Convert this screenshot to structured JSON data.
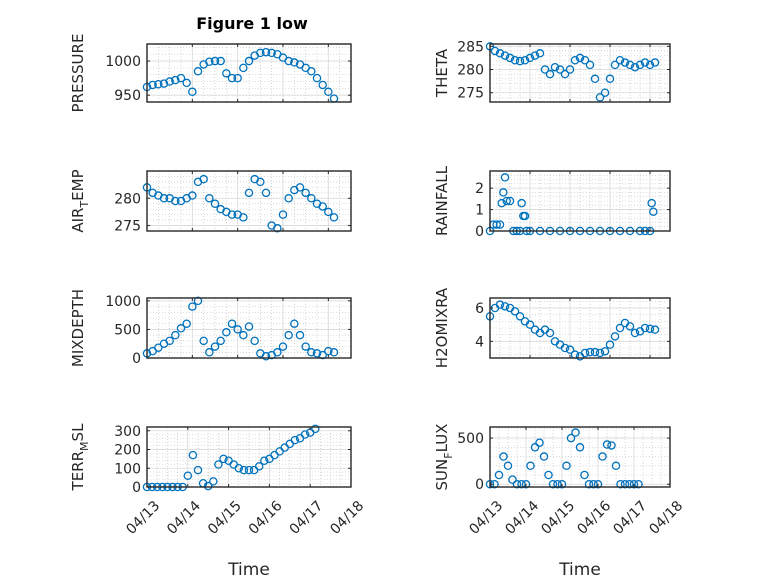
{
  "figure_title": "Figure 1 low",
  "marker_color": "#0072BD",
  "chart_data": [
    {
      "type": "scatter",
      "ylabel_main": "PRESSURE",
      "ylabel_sub": "",
      "ylabel_tail": "",
      "ylim": [
        940,
        1025
      ],
      "yticks": [
        950,
        1000
      ],
      "ytick_labels": [
        "950",
        "1000"
      ],
      "xlim": [
        "04/13",
        "04/17 12:00"
      ],
      "xticks": [],
      "xtick_labels": [],
      "xlabel": "",
      "x": [
        "04/13 00:00",
        "04/13 03:00",
        "04/13 06:00",
        "04/13 09:00",
        "04/13 12:00",
        "04/13 15:00",
        "04/13 18:00",
        "04/13 21:00",
        "04/14 00:00",
        "04/14 03:00",
        "04/14 06:00",
        "04/14 09:00",
        "04/14 12:00",
        "04/14 15:00",
        "04/14 18:00",
        "04/14 21:00",
        "04/15 00:00",
        "04/15 03:00",
        "04/15 06:00",
        "04/15 09:00",
        "04/15 12:00",
        "04/15 15:00",
        "04/15 18:00",
        "04/15 21:00",
        "04/16 00:00",
        "04/16 03:00",
        "04/16 06:00",
        "04/16 09:00",
        "04/16 12:00",
        "04/16 15:00",
        "04/16 18:00",
        "04/16 21:00",
        "04/17 00:00",
        "04/17 03:00"
      ],
      "y": [
        962,
        965,
        966,
        967,
        970,
        972,
        975,
        968,
        955,
        985,
        995,
        999,
        1000,
        1000,
        982,
        975,
        975,
        990,
        1000,
        1008,
        1012,
        1013,
        1012,
        1010,
        1005,
        1000,
        998,
        995,
        990,
        985,
        975,
        965,
        955,
        945
      ]
    },
    {
      "type": "scatter",
      "ylabel_main": "THETA",
      "ylabel_sub": "",
      "ylabel_tail": "",
      "ylim": [
        273,
        285.5
      ],
      "yticks": [
        275,
        280,
        285
      ],
      "ytick_labels": [
        "275",
        "280",
        "285"
      ],
      "xlim": [
        "04/13",
        "04/17 12:00"
      ],
      "xticks": [],
      "xtick_labels": [],
      "xlabel": "",
      "x": [
        "04/13 00:00",
        "04/13 03:00",
        "04/13 06:00",
        "04/13 09:00",
        "04/13 12:00",
        "04/13 15:00",
        "04/13 18:00",
        "04/13 21:00",
        "04/14 00:00",
        "04/14 03:00",
        "04/14 06:00",
        "04/14 09:00",
        "04/14 12:00",
        "04/14 15:00",
        "04/14 18:00",
        "04/14 21:00",
        "04/15 00:00",
        "04/15 03:00",
        "04/15 06:00",
        "04/15 09:00",
        "04/15 12:00",
        "04/15 15:00",
        "04/15 18:00",
        "04/15 21:00",
        "04/16 00:00",
        "04/16 03:00",
        "04/16 06:00",
        "04/16 09:00",
        "04/16 12:00",
        "04/16 15:00",
        "04/16 18:00",
        "04/16 21:00",
        "04/17 00:00",
        "04/17 03:00"
      ],
      "y": [
        285,
        284,
        283.5,
        283,
        282.5,
        282,
        281.8,
        282,
        282.5,
        283,
        283.5,
        280,
        279,
        280.5,
        280,
        279,
        280,
        282,
        282.5,
        282,
        281,
        278,
        274,
        275,
        278,
        281,
        282,
        281.5,
        281,
        280.5,
        281,
        281.5,
        281,
        281.5
      ]
    },
    {
      "type": "scatter",
      "ylabel_main": "AIR",
      "ylabel_sub": "T",
      "ylabel_tail": "EMP",
      "ylim": [
        274,
        285
      ],
      "yticks": [
        275,
        280
      ],
      "ytick_labels": [
        "275",
        "280"
      ],
      "xlim": [
        "04/13",
        "04/17 12:00"
      ],
      "xticks": [],
      "xtick_labels": [],
      "xlabel": "",
      "x": [
        "04/13 00:00",
        "04/13 03:00",
        "04/13 06:00",
        "04/13 09:00",
        "04/13 12:00",
        "04/13 15:00",
        "04/13 18:00",
        "04/13 21:00",
        "04/14 00:00",
        "04/14 03:00",
        "04/14 06:00",
        "04/14 09:00",
        "04/14 12:00",
        "04/14 15:00",
        "04/14 18:00",
        "04/14 21:00",
        "04/15 00:00",
        "04/15 03:00",
        "04/15 06:00",
        "04/15 09:00",
        "04/15 12:00",
        "04/15 15:00",
        "04/15 18:00",
        "04/15 21:00",
        "04/16 00:00",
        "04/16 03:00",
        "04/16 06:00",
        "04/16 09:00",
        "04/16 12:00",
        "04/16 15:00",
        "04/16 18:00",
        "04/16 21:00",
        "04/17 00:00",
        "04/17 03:00"
      ],
      "y": [
        282,
        281,
        280.5,
        280,
        280,
        279.5,
        279.5,
        280,
        280.5,
        283,
        283.5,
        280,
        279,
        278,
        277.5,
        277,
        277,
        276.5,
        281,
        283.5,
        283,
        281,
        275,
        274.5,
        277,
        280,
        281.5,
        282,
        281,
        280,
        279,
        278.5,
        277.5,
        276.5
      ]
    },
    {
      "type": "scatter",
      "ylabel_main": "RAINFALL",
      "ylabel_sub": "",
      "ylabel_tail": "",
      "ylim": [
        0,
        2.8
      ],
      "yticks": [
        0,
        1,
        2
      ],
      "ytick_labels": [
        "0",
        "1",
        "2"
      ],
      "xlim": [
        "04/13",
        "04/17 12:00"
      ],
      "xticks": [],
      "xtick_labels": [],
      "xlabel": "",
      "x": [
        "04/13 00:00",
        "04/13 02:00",
        "04/13 04:00",
        "04/13 06:00",
        "04/13 07:00",
        "04/13 08:00",
        "04/13 09:00",
        "04/13 10:00",
        "04/13 12:00",
        "04/13 14:00",
        "04/13 16:00",
        "04/13 18:00",
        "04/13 19:00",
        "04/13 20:00",
        "04/13 21:00",
        "04/13 22:00",
        "04/14 00:00",
        "04/14 06:00",
        "04/14 12:00",
        "04/14 18:00",
        "04/15 00:00",
        "04/15 06:00",
        "04/15 12:00",
        "04/15 18:00",
        "04/16 00:00",
        "04/16 06:00",
        "04/16 12:00",
        "04/16 18:00",
        "04/16 21:00",
        "04/17 00:00",
        "04/17 01:00",
        "04/17 02:00"
      ],
      "y": [
        0,
        0.3,
        0.3,
        0.3,
        1.3,
        1.8,
        2.5,
        1.4,
        1.4,
        0,
        0,
        0,
        1.3,
        0.7,
        0.7,
        0,
        0,
        0,
        0,
        0,
        0,
        0,
        0,
        0,
        0,
        0,
        0,
        0,
        0,
        0,
        1.3,
        0.9
      ]
    },
    {
      "type": "scatter",
      "ylabel_main": "MIXDEPTH",
      "ylabel_sub": "",
      "ylabel_tail": "",
      "ylim": [
        0,
        1050
      ],
      "yticks": [
        0,
        500,
        1000
      ],
      "ytick_labels": [
        "0",
        "500",
        "1000"
      ],
      "xlim": [
        "04/13",
        "04/17 12:00"
      ],
      "xticks": [],
      "xtick_labels": [],
      "xlabel": "",
      "x": [
        "04/13 00:00",
        "04/13 03:00",
        "04/13 06:00",
        "04/13 09:00",
        "04/13 12:00",
        "04/13 15:00",
        "04/13 18:00",
        "04/13 21:00",
        "04/14 00:00",
        "04/14 03:00",
        "04/14 06:00",
        "04/14 09:00",
        "04/14 12:00",
        "04/14 15:00",
        "04/14 18:00",
        "04/14 21:00",
        "04/15 00:00",
        "04/15 03:00",
        "04/15 06:00",
        "04/15 09:00",
        "04/15 12:00",
        "04/15 15:00",
        "04/15 18:00",
        "04/15 21:00",
        "04/16 00:00",
        "04/16 03:00",
        "04/16 06:00",
        "04/16 09:00",
        "04/16 12:00",
        "04/16 15:00",
        "04/16 18:00",
        "04/16 21:00",
        "04/17 00:00",
        "04/17 03:00"
      ],
      "y": [
        80,
        120,
        180,
        250,
        300,
        400,
        520,
        600,
        900,
        1000,
        300,
        100,
        200,
        300,
        450,
        600,
        500,
        400,
        550,
        300,
        80,
        30,
        50,
        100,
        200,
        400,
        600,
        400,
        200,
        100,
        80,
        50,
        120,
        100
      ]
    },
    {
      "type": "scatter",
      "ylabel_main": "H2OMIXRA",
      "ylabel_sub": "",
      "ylabel_tail": "",
      "ylim": [
        3,
        6.6
      ],
      "yticks": [
        4,
        6
      ],
      "ytick_labels": [
        "4",
        "6"
      ],
      "xlim": [
        "04/13",
        "04/17 12:00"
      ],
      "xticks": [],
      "xtick_labels": [],
      "xlabel": "",
      "x": [
        "04/13 00:00",
        "04/13 03:00",
        "04/13 06:00",
        "04/13 09:00",
        "04/13 12:00",
        "04/13 15:00",
        "04/13 18:00",
        "04/13 21:00",
        "04/14 00:00",
        "04/14 03:00",
        "04/14 06:00",
        "04/14 09:00",
        "04/14 12:00",
        "04/14 15:00",
        "04/14 18:00",
        "04/14 21:00",
        "04/15 00:00",
        "04/15 03:00",
        "04/15 06:00",
        "04/15 09:00",
        "04/15 12:00",
        "04/15 15:00",
        "04/15 18:00",
        "04/15 21:00",
        "04/16 00:00",
        "04/16 03:00",
        "04/16 06:00",
        "04/16 09:00",
        "04/16 12:00",
        "04/16 15:00",
        "04/16 18:00",
        "04/16 21:00",
        "04/17 00:00",
        "04/17 03:00"
      ],
      "y": [
        5.5,
        6,
        6.2,
        6.1,
        6,
        5.8,
        5.5,
        5.2,
        5,
        4.7,
        4.5,
        4.7,
        4.5,
        4,
        3.8,
        3.6,
        3.5,
        3.2,
        3.1,
        3.3,
        3.35,
        3.35,
        3.3,
        3.4,
        3.8,
        4.3,
        4.8,
        5.1,
        4.9,
        4.5,
        4.6,
        4.8,
        4.75,
        4.7
      ]
    },
    {
      "type": "scatter",
      "ylabel_main": "TERR",
      "ylabel_sub": "M",
      "ylabel_tail": "SL",
      "ylim": [
        0,
        320
      ],
      "yticks": [
        0,
        100,
        200,
        300
      ],
      "ytick_labels": [
        "0",
        "100",
        "200",
        "300"
      ],
      "xlim": [
        "04/13",
        "04/18"
      ],
      "xticks": [
        "04/13",
        "04/14",
        "04/15",
        "04/16",
        "04/17",
        "04/18"
      ],
      "xtick_labels": [
        "04/13",
        "04/14",
        "04/15",
        "04/16",
        "04/17",
        "04/18"
      ],
      "xlabel": "Time",
      "x": [
        "04/13 00:00",
        "04/13 03:00",
        "04/13 06:00",
        "04/13 09:00",
        "04/13 12:00",
        "04/13 15:00",
        "04/13 18:00",
        "04/13 21:00",
        "04/14 00:00",
        "04/14 03:00",
        "04/14 06:00",
        "04/14 09:00",
        "04/14 12:00",
        "04/14 15:00",
        "04/14 18:00",
        "04/14 21:00",
        "04/15 00:00",
        "04/15 03:00",
        "04/15 06:00",
        "04/15 09:00",
        "04/15 12:00",
        "04/15 15:00",
        "04/15 18:00",
        "04/15 21:00",
        "04/16 00:00",
        "04/16 03:00",
        "04/16 06:00",
        "04/16 09:00",
        "04/16 12:00",
        "04/16 15:00",
        "04/16 18:00",
        "04/16 21:00",
        "04/17 00:00",
        "04/17 03:00"
      ],
      "y": [
        0,
        0,
        0,
        0,
        0,
        0,
        0,
        0,
        60,
        170,
        90,
        20,
        5,
        30,
        120,
        150,
        140,
        120,
        100,
        90,
        90,
        90,
        110,
        140,
        150,
        170,
        190,
        210,
        230,
        250,
        260,
        280,
        290,
        310
      ]
    },
    {
      "type": "scatter",
      "ylabel_main": "SUN",
      "ylabel_sub": "F",
      "ylabel_tail": "LUX",
      "ylim": [
        -30,
        620
      ],
      "yticks": [
        0,
        500
      ],
      "ytick_labels": [
        "0",
        "500"
      ],
      "xlim": [
        "04/13",
        "04/18"
      ],
      "xticks": [
        "04/13",
        "04/14",
        "04/15",
        "04/16",
        "04/17",
        "04/18"
      ],
      "xtick_labels": [
        "04/13",
        "04/14",
        "04/15",
        "04/16",
        "04/17",
        "04/18"
      ],
      "xlabel": "Time",
      "x": [
        "04/13 00:00",
        "04/13 03:00",
        "04/13 06:00",
        "04/13 09:00",
        "04/13 12:00",
        "04/13 15:00",
        "04/13 18:00",
        "04/13 21:00",
        "04/14 00:00",
        "04/14 03:00",
        "04/14 06:00",
        "04/14 09:00",
        "04/14 12:00",
        "04/14 15:00",
        "04/14 18:00",
        "04/14 21:00",
        "04/15 00:00",
        "04/15 03:00",
        "04/15 06:00",
        "04/15 09:00",
        "04/15 12:00",
        "04/15 15:00",
        "04/15 18:00",
        "04/15 21:00",
        "04/16 00:00",
        "04/16 03:00",
        "04/16 06:00",
        "04/16 09:00",
        "04/16 12:00",
        "04/16 15:00",
        "04/16 18:00",
        "04/16 21:00",
        "04/17 00:00",
        "04/17 03:00"
      ],
      "y": [
        0,
        0,
        100,
        300,
        200,
        50,
        0,
        0,
        0,
        200,
        400,
        450,
        300,
        100,
        0,
        0,
        0,
        200,
        500,
        560,
        400,
        100,
        0,
        0,
        0,
        300,
        430,
        420,
        200,
        0,
        0,
        0,
        0,
        0
      ]
    }
  ]
}
